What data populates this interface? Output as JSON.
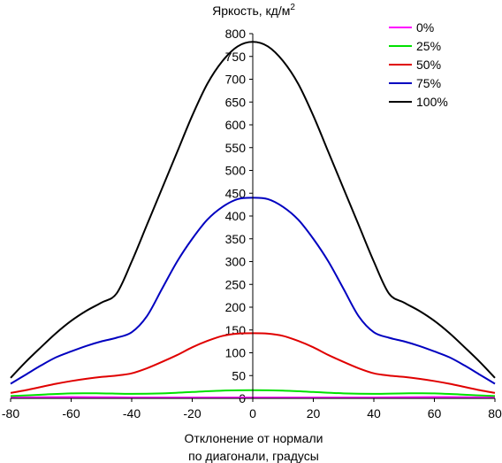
{
  "chart_data": {
    "type": "line",
    "title": "",
    "ylabel": "Яркость, кд/м",
    "ylabel_sup": "2",
    "xlabel_line1": "Отклонение от нормали",
    "xlabel_line2": "по диагонали, градусы",
    "xlim": [
      -80,
      80
    ],
    "ylim": [
      0,
      800
    ],
    "x_ticks": [
      -80,
      -60,
      -40,
      -20,
      0,
      20,
      40,
      60,
      80
    ],
    "y_ticks": [
      0,
      50,
      100,
      150,
      200,
      250,
      300,
      350,
      400,
      450,
      500,
      550,
      600,
      650,
      700,
      750,
      800
    ],
    "grid": false,
    "legend_position": "top-right",
    "series": [
      {
        "name": "0%",
        "color": "#ff00ff",
        "x": [
          -80,
          -60,
          -40,
          -20,
          0,
          20,
          40,
          60,
          80
        ],
        "y": [
          2,
          3,
          2,
          2,
          2,
          2,
          2,
          3,
          2
        ]
      },
      {
        "name": "25%",
        "color": "#00e000",
        "x": [
          -80,
          -70,
          -60,
          -50,
          -40,
          -30,
          -20,
          -10,
          0,
          10,
          20,
          30,
          40,
          50,
          60,
          70,
          80
        ],
        "y": [
          5,
          8,
          11,
          11,
          10,
          11,
          14,
          17,
          18,
          17,
          14,
          11,
          10,
          11,
          11,
          8,
          5
        ]
      },
      {
        "name": "50%",
        "color": "#e00000",
        "x": [
          -80,
          -75,
          -70,
          -65,
          -60,
          -55,
          -50,
          -45,
          -40,
          -35,
          -30,
          -25,
          -20,
          -15,
          -10,
          -5,
          0,
          5,
          10,
          15,
          20,
          25,
          30,
          35,
          40,
          45,
          50,
          55,
          60,
          65,
          70,
          75,
          80
        ],
        "y": [
          12,
          18,
          25,
          32,
          38,
          43,
          47,
          50,
          55,
          66,
          80,
          95,
          112,
          126,
          137,
          142,
          143,
          142,
          137,
          126,
          112,
          95,
          80,
          66,
          55,
          50,
          47,
          43,
          38,
          32,
          25,
          18,
          12
        ]
      },
      {
        "name": "75%",
        "color": "#0000c0",
        "x": [
          -80,
          -75,
          -70,
          -65,
          -60,
          -55,
          -50,
          -45,
          -40,
          -35,
          -30,
          -25,
          -20,
          -15,
          -10,
          -5,
          0,
          5,
          10,
          15,
          20,
          25,
          30,
          35,
          40,
          45,
          50,
          55,
          60,
          65,
          70,
          75,
          80
        ],
        "y": [
          32,
          52,
          72,
          90,
          103,
          115,
          125,
          133,
          145,
          180,
          240,
          300,
          350,
          392,
          420,
          437,
          440,
          437,
          420,
          392,
          350,
          300,
          240,
          180,
          145,
          133,
          125,
          115,
          103,
          90,
          72,
          52,
          32
        ]
      },
      {
        "name": "100%",
        "color": "#000000",
        "x": [
          -80,
          -75,
          -70,
          -65,
          -60,
          -55,
          -50,
          -45,
          -40,
          -35,
          -30,
          -25,
          -20,
          -15,
          -10,
          -5,
          0,
          5,
          10,
          15,
          20,
          25,
          30,
          35,
          40,
          45,
          50,
          55,
          60,
          65,
          70,
          75,
          80
        ],
        "y": [
          45,
          80,
          112,
          143,
          170,
          192,
          210,
          230,
          300,
          380,
          460,
          540,
          620,
          690,
          740,
          772,
          782,
          772,
          740,
          690,
          620,
          540,
          460,
          380,
          300,
          230,
          210,
          192,
          170,
          143,
          112,
          80,
          45
        ]
      }
    ]
  }
}
